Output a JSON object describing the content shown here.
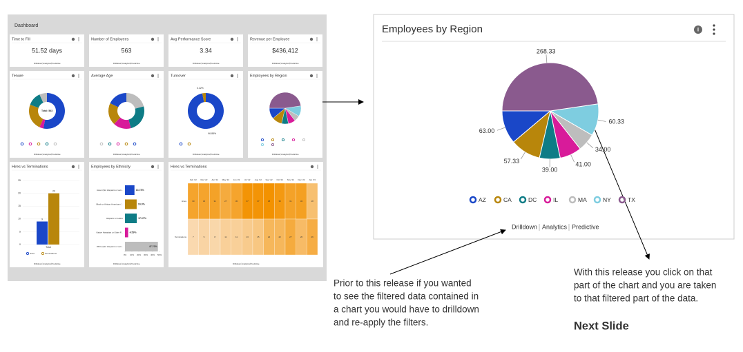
{
  "dashboard": {
    "title": "Dashboard",
    "kpis": [
      {
        "title": "Time to Fill",
        "value": "51.52 days"
      },
      {
        "title": "Number of Employees",
        "value": "563"
      },
      {
        "title": "Avg Performance Score",
        "value": "3.34"
      },
      {
        "title": "Revenue per Employee",
        "value": "$436,412"
      }
    ],
    "tenure": {
      "title": "Tenure",
      "center_label": "Total: 563",
      "values": [
        300,
        20,
        134,
        71,
        38
      ],
      "colors": [
        "#1a47c8",
        "#d81b9a",
        "#b8860b",
        "#0e7c86",
        "#bdbdbd"
      ]
    },
    "average_age": {
      "title": "Average Age",
      "values": [
        21,
        25,
        16,
        20,
        18
      ],
      "colors": [
        "#bdbdbd",
        "#0e7c86",
        "#d81b9a",
        "#b8860b",
        "#1a47c8"
      ]
    },
    "turnover": {
      "title": "Turnover",
      "values": [
        96.88,
        3.12
      ],
      "value_labels": [
        "96.88%",
        "3.12%"
      ],
      "colors": [
        "#1a47c8",
        "#b8860b"
      ]
    },
    "hires_vs_terminations_bar": {
      "title": "Hires vs Terminations",
      "categories": [
        "Total"
      ],
      "series": [
        {
          "name": "Hires",
          "color": "#1a47c8",
          "values": [
            9
          ]
        },
        {
          "name": "Terminations",
          "color": "#b8860b",
          "values": [
            20
          ]
        }
      ],
      "ylim": [
        0,
        25
      ],
      "yticks": [
        0,
        5,
        10,
        15,
        20,
        25
      ]
    },
    "ethnicity": {
      "title": "Employees by Ethnicity",
      "categories": [
        "Asian (Not Hispanic or Lati...",
        "Black or African American (...",
        "Hispanic or Latino",
        "Native Hawaiian or Other P...",
        "White (Not Hispanic or Lati..."
      ],
      "values": [
        13.73,
        16.9,
        17.07,
        4.59,
        47.7
      ],
      "value_labels": [
        "13.73%",
        "16.9%",
        "17.07%",
        "4.59%",
        "47.70%"
      ],
      "colors": [
        "#1a47c8",
        "#b8860b",
        "#0e7c86",
        "#d81b9a",
        "#bdbdbd"
      ],
      "xlim": [
        0,
        50
      ],
      "xticks": [
        {
          "value": 0,
          "label": "0%"
        },
        {
          "value": 10,
          "label": "10%"
        },
        {
          "value": 20,
          "label": "20%"
        },
        {
          "value": 30,
          "label": "30%"
        },
        {
          "value": 40,
          "label": "40%"
        },
        {
          "value": 50,
          "label": "50%"
        }
      ]
    },
    "heatmap": {
      "title": "Hires vs Terminations",
      "columns": [
        "Feb '22",
        "Mar '22",
        "Apr '22",
        "May '22",
        "Jun '22",
        "Jul '22",
        "Aug '22",
        "Sep '22",
        "Oct '22",
        "Nov '22",
        "Dec '22",
        "Jan '23"
      ],
      "rows": [
        {
          "name": "Hires",
          "values": [
            30,
            30,
            31,
            27,
            30,
            37,
            37,
            38,
            35,
            31,
            32,
            18
          ]
        },
        {
          "name": "Terminations",
          "values": [
            7,
            9,
            8,
            11,
            11,
            13,
            15,
            22,
            22,
            27,
            20,
            26
          ]
        }
      ]
    }
  },
  "footer_links": [
    "Drilldown",
    "Analytics",
    "Predictive"
  ],
  "chart_data": {
    "type": "pie",
    "title": "Employees by Region",
    "categories": [
      "AZ",
      "CA",
      "DC",
      "IL",
      "MA",
      "NY",
      "TX"
    ],
    "values": [
      63,
      57.33,
      39,
      41,
      34,
      60.33,
      268.33
    ],
    "value_labels": [
      "63.00",
      "57.33",
      "39.00",
      "41.00",
      "34.00",
      "60.33",
      "268.33"
    ],
    "colors": [
      "#1a47c8",
      "#b8860b",
      "#0e7c86",
      "#d81b9a",
      "#bdbdbd",
      "#7ecde0",
      "#8a5a8e"
    ]
  },
  "annotations": {
    "left_note": [
      "Prior to this release if you wanted",
      "to see the filtered data contained in",
      "a chart you would have to drilldown",
      "and re-apply the filters."
    ],
    "right_note": [
      "With this release you click on that",
      "part of the chart and you are taken",
      "to that filtered part of the data."
    ],
    "next_slide": "Next Slide"
  }
}
